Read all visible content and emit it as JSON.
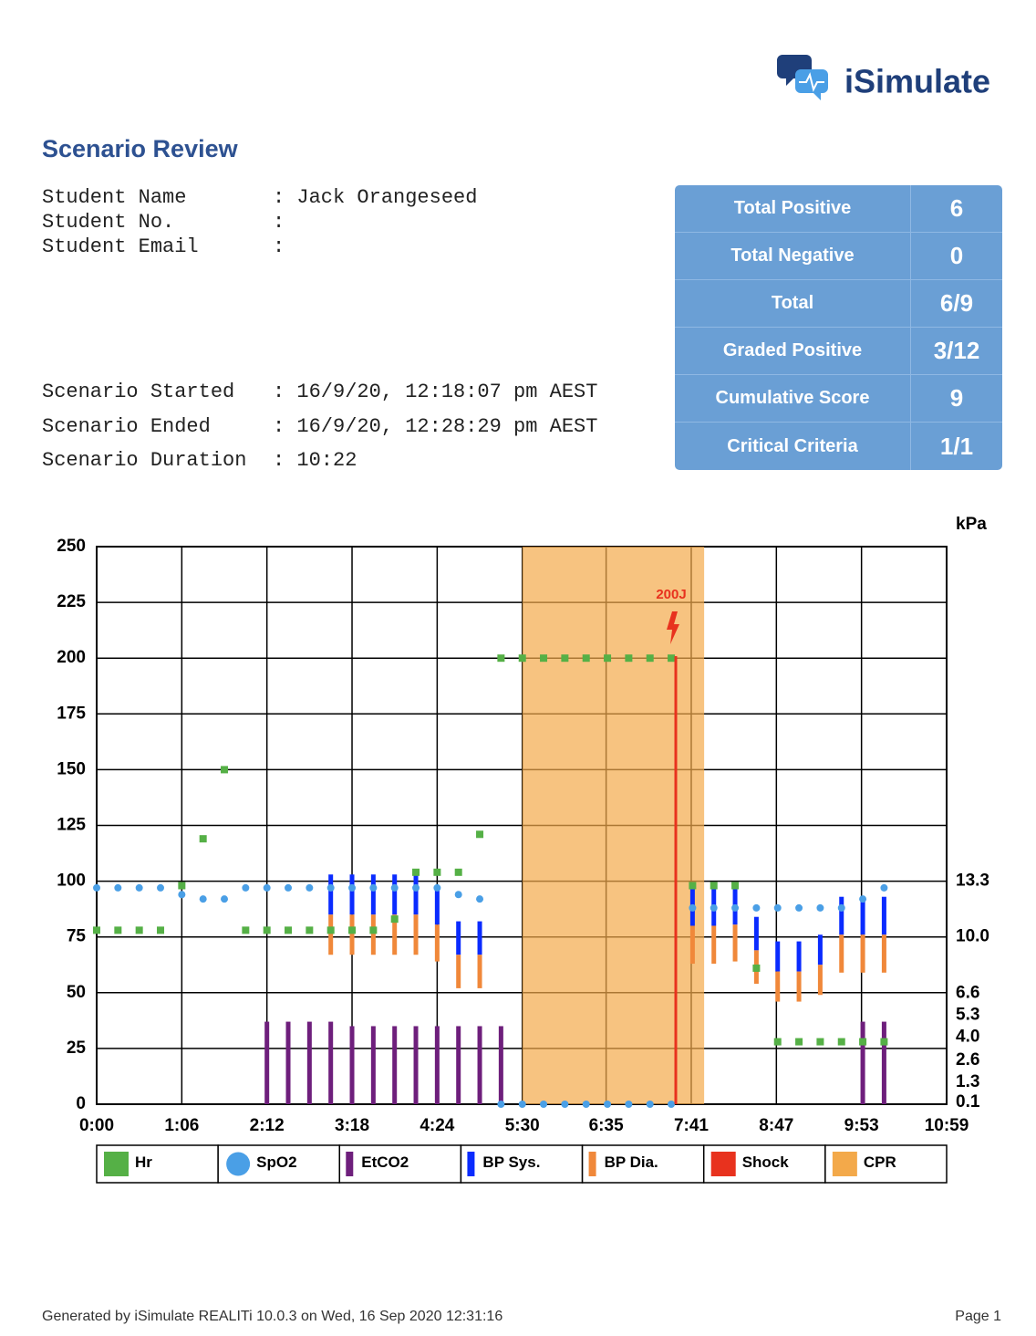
{
  "header": {
    "brand": "iSimulate",
    "title": "Scenario Review"
  },
  "student": [
    {
      "label": "Student Name",
      "value": ": Jack Orangeseed"
    },
    {
      "label": "Student No.",
      "value": ":"
    },
    {
      "label": "Student Email",
      "value": ":"
    }
  ],
  "scenario": [
    {
      "label": "Scenario Started",
      "value": ": 16/9/20, 12:18:07 pm AEST"
    },
    {
      "label": "Scenario Ended",
      "value": ": 16/9/20, 12:28:29 pm AEST"
    },
    {
      "label": "Scenario Duration",
      "value": ": 10:22"
    }
  ],
  "scores": [
    {
      "label": "Total Positive",
      "value": "6"
    },
    {
      "label": "Total Negative",
      "value": "0"
    },
    {
      "label": "Total",
      "value": "6/9"
    },
    {
      "label": "Graded Positive",
      "value": "3/12"
    },
    {
      "label": "Cumulative Score",
      "value": "9"
    },
    {
      "label": "Critical Criteria",
      "value": "1/1"
    }
  ],
  "chart_data": {
    "type": "vitals",
    "y2label": "kPa",
    "grid": true,
    "xlim": [
      0,
      659
    ],
    "xticks": [
      {
        "value": 0,
        "label": "0:00"
      },
      {
        "value": 66,
        "label": "1:06"
      },
      {
        "value": 132,
        "label": "2:12"
      },
      {
        "value": 198,
        "label": "3:18"
      },
      {
        "value": 264,
        "label": "4:24"
      },
      {
        "value": 330,
        "label": "5:30"
      },
      {
        "value": 395,
        "label": "6:35"
      },
      {
        "value": 461,
        "label": "7:41"
      },
      {
        "value": 527,
        "label": "8:47"
      },
      {
        "value": 593,
        "label": "9:53"
      },
      {
        "value": 659,
        "label": "10:59"
      }
    ],
    "ylim": [
      0,
      250
    ],
    "yticks": [
      0,
      25,
      50,
      75,
      100,
      125,
      150,
      175,
      200,
      225,
      250
    ],
    "y2lim": [
      0,
      33.25
    ],
    "y2ticks": [
      13.3,
      {
        "value": 10,
        "label": "10.0"
      },
      6.6,
      5.3,
      {
        "value": 4,
        "label": "4.0"
      },
      2.6,
      1.3,
      0.1
    ],
    "x": [
      0,
      16.5,
      33,
      49.5,
      66,
      82.5,
      99,
      115.5,
      132,
      148.5,
      165,
      181.5,
      198,
      214.5,
      231,
      247.5,
      264,
      280.5,
      297,
      313.5,
      330,
      346.5,
      363,
      379.5,
      396,
      412.5,
      429,
      445.5,
      462,
      478.5,
      495,
      511.5,
      528,
      544.5,
      561,
      577.5,
      594,
      610.5
    ],
    "series": [
      {
        "name": "Hr",
        "color": "#55b046",
        "kind": "square",
        "values": [
          78,
          78,
          78,
          78,
          98,
          119,
          150,
          78,
          78,
          78,
          78,
          78,
          78,
          78,
          83,
          104,
          104,
          104,
          121,
          200,
          200,
          200,
          200,
          200,
          200,
          200,
          200,
          200,
          98,
          98,
          98,
          61,
          28,
          28,
          28,
          28,
          28,
          28
        ]
      },
      {
        "name": "SpO2",
        "color": "#4a9fe6",
        "kind": "circle",
        "values": [
          97,
          97,
          97,
          97,
          94,
          92,
          92,
          97,
          97,
          97,
          97,
          97,
          97,
          97,
          97,
          97,
          97,
          94,
          92,
          0,
          0,
          0,
          0,
          0,
          0,
          0,
          0,
          0,
          88,
          88,
          88,
          88,
          88,
          88,
          88,
          88,
          92,
          97
        ]
      },
      {
        "name": "EtCO2",
        "color": "#6e1f7c",
        "kind": "bar",
        "values": [
          null,
          null,
          null,
          null,
          null,
          null,
          null,
          null,
          37,
          37,
          37,
          37,
          35,
          35,
          35,
          35,
          35,
          35,
          35,
          35,
          null,
          null,
          null,
          null,
          null,
          null,
          null,
          null,
          null,
          null,
          null,
          null,
          null,
          null,
          null,
          null,
          37,
          37
        ]
      },
      {
        "name": "BP Sys.",
        "color": "#0a2bff",
        "kind": "range-high",
        "values": [
          null,
          null,
          null,
          null,
          null,
          null,
          null,
          null,
          null,
          null,
          null,
          103,
          103,
          103,
          103,
          103,
          97,
          82,
          82,
          null,
          null,
          null,
          null,
          null,
          null,
          null,
          null,
          null,
          97,
          97,
          97,
          84,
          73,
          73,
          76,
          93,
          93,
          93
        ]
      },
      {
        "name": "BP Dia.",
        "color": "#f0883a",
        "kind": "range-low",
        "values": [
          null,
          null,
          null,
          null,
          null,
          null,
          null,
          null,
          null,
          null,
          null,
          67,
          67,
          67,
          67,
          67,
          64,
          52,
          52,
          null,
          null,
          null,
          null,
          null,
          null,
          null,
          null,
          null,
          63,
          63,
          64,
          54,
          46,
          46,
          49,
          59,
          59,
          59
        ]
      }
    ],
    "shock": {
      "name": "Shock",
      "color": "#e8321e",
      "events": [
        {
          "x": 449,
          "label": "200J"
        }
      ]
    },
    "cpr": {
      "name": "CPR",
      "color": "#f3a94a",
      "periods": [
        {
          "start": 330,
          "end": 471
        }
      ]
    }
  },
  "footer": {
    "generated": "Generated by iSimulate REALITi 10.0.3 on Wed, 16 Sep 2020 12:31:16",
    "page": "Page 1"
  }
}
